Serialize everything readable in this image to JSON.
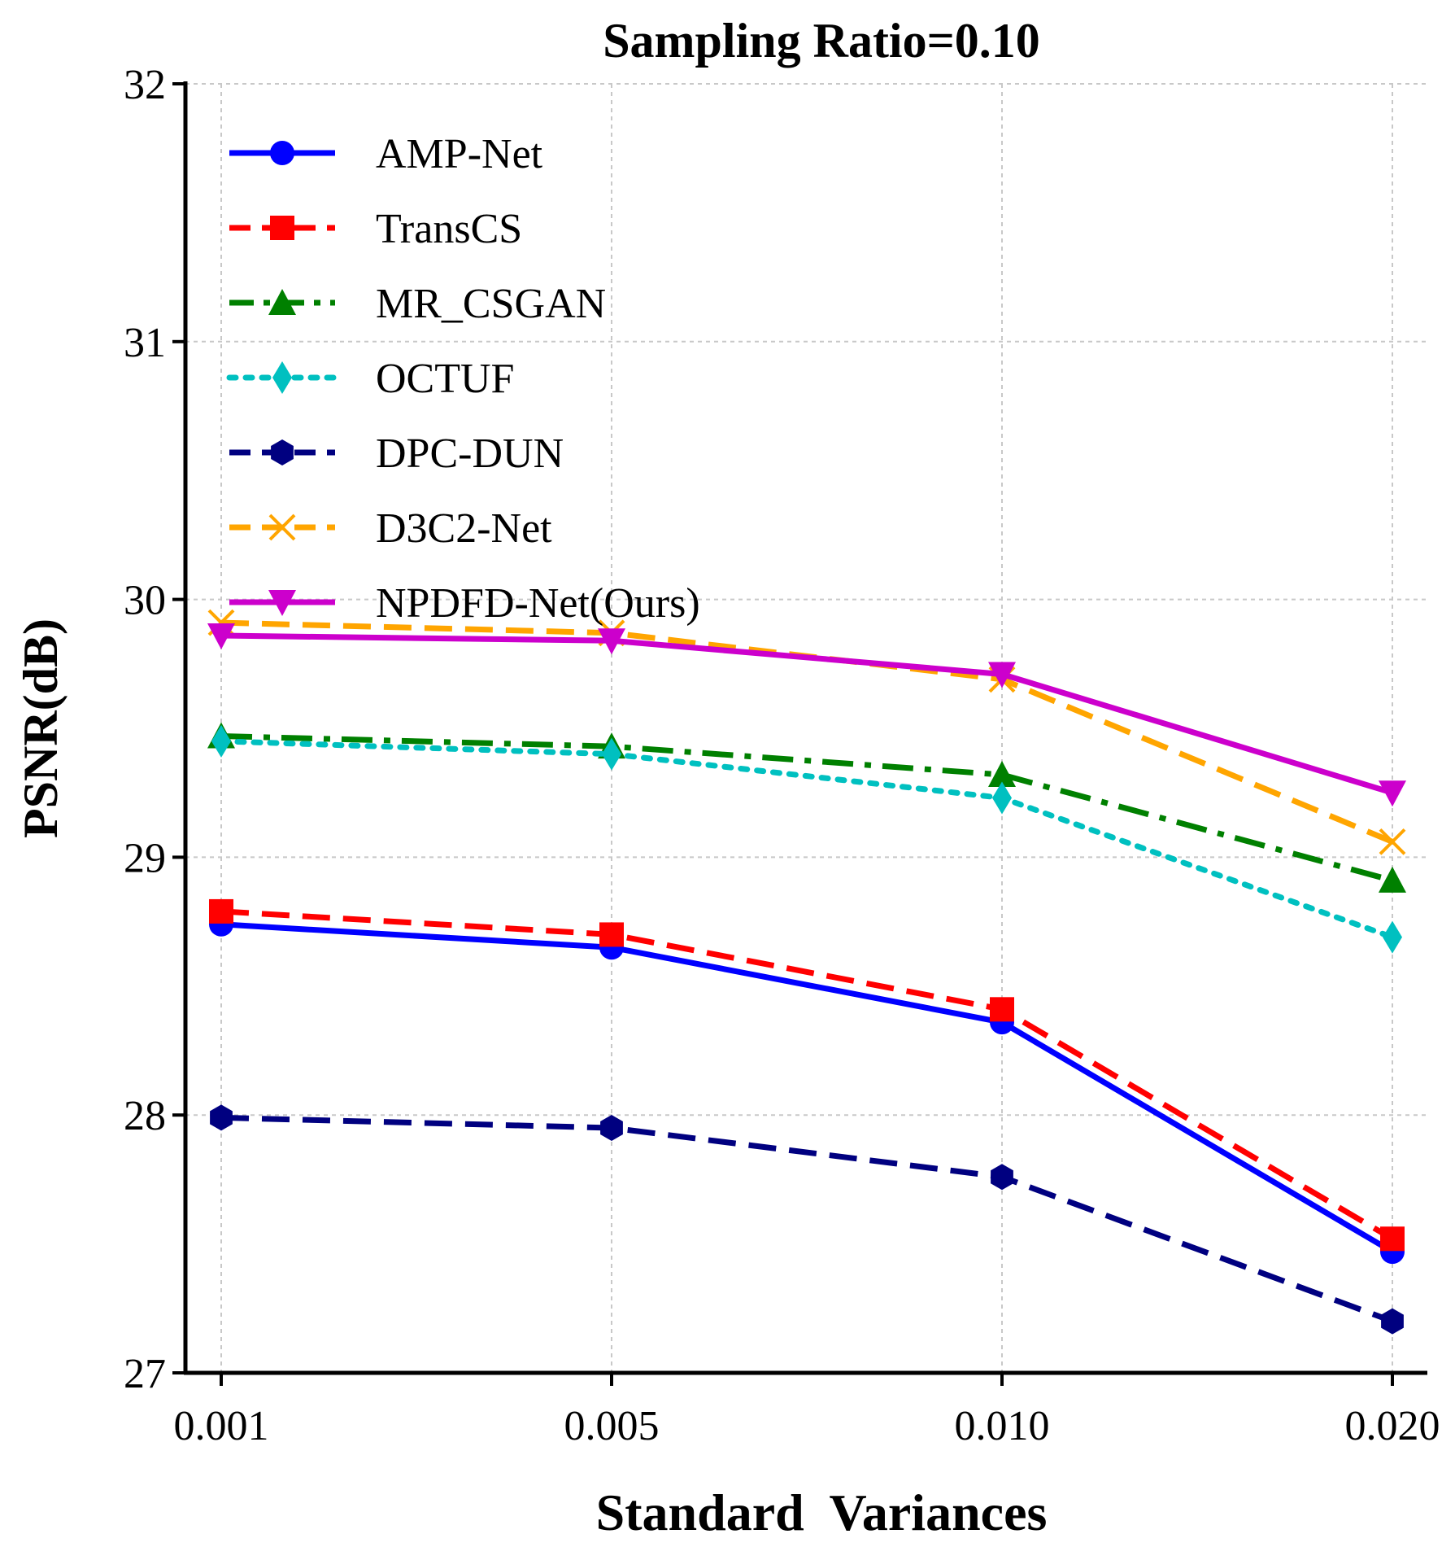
{
  "chart_data": {
    "type": "line",
    "title": "Sampling Ratio=0.10",
    "xlabel": "Standard  Variances",
    "ylabel": "PSNR(dB)",
    "categories": [
      "0.001",
      "0.005",
      "0.010",
      "0.020"
    ],
    "yticks": [
      "27",
      "28",
      "29",
      "30",
      "31",
      "32"
    ],
    "ylim": [
      27,
      32
    ],
    "grid": true,
    "legend_position": "upper-left",
    "series": [
      {
        "name": "AMP-Net",
        "color": "#0000ff",
        "linestyle": "solid",
        "marker": "circle",
        "values": [
          28.74,
          28.65,
          28.36,
          27.47
        ]
      },
      {
        "name": "TransCS",
        "color": "#ff0000",
        "linestyle": "dashed",
        "marker": "square",
        "values": [
          28.79,
          28.7,
          28.41,
          27.52
        ]
      },
      {
        "name": "MR_CSGAN",
        "color": "#008000",
        "linestyle": "dashdot",
        "marker": "triangle-up",
        "values": [
          29.47,
          29.43,
          29.32,
          28.91
        ]
      },
      {
        "name": "OCTUF",
        "color": "#00c0c0",
        "linestyle": "dotted",
        "marker": "diamond",
        "values": [
          29.45,
          29.4,
          29.23,
          28.69
        ]
      },
      {
        "name": "DPC-DUN",
        "color": "#000080",
        "linestyle": "dashed",
        "marker": "hexagon",
        "values": [
          27.99,
          27.95,
          27.76,
          27.2
        ]
      },
      {
        "name": "D3C2-Net",
        "color": "#ffa500",
        "linestyle": "dashed",
        "marker": "x",
        "values": [
          29.91,
          29.87,
          29.69,
          29.06
        ]
      },
      {
        "name": "NPDFD-Net(Ours)",
        "color": "#cc00cc",
        "linestyle": "solid",
        "marker": "triangle-down",
        "values": [
          29.86,
          29.84,
          29.71,
          29.25
        ]
      }
    ]
  }
}
